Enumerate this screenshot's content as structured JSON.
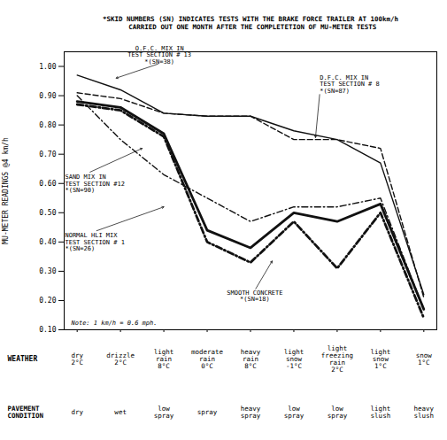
{
  "chart_data": {
    "type": "line",
    "title": "*SKID NUMBERS (SN) INDICATES TESTS WITH THE BRAKE FORCE TRAILER AT 100km/h\n CARRIED OUT ONE MONTH AFTER THE COMPLETETION OF MU-METER TESTS",
    "ylabel": "MU-METER READINGS @4 km/h",
    "xlabel": "WEATHER",
    "categories": [
      "dry\n2°C",
      "drizzle\n2°C",
      "light\nrain\n8°C",
      "moderate\nrain\n0°C",
      "heavy\nrain\n8°C",
      "light\nsnow\n-1°C",
      "light\nfreezing\nrain\n2°C",
      "light\nsnow\n1°C",
      "snow\n1°C"
    ],
    "secondary_xlabel": "PAVEMENT\nCONDITION",
    "secondary_categories": [
      "dry",
      "wet",
      "low\nspray",
      "spray",
      "heavy\nspray",
      "low\nspray",
      "low\nspray",
      "light\nslush",
      "heavy\nslush"
    ],
    "ylim": [
      0.1,
      1.05
    ],
    "yticks": [
      {
        "value": 0.1,
        "label": "0.10"
      },
      {
        "value": 0.2,
        "label": "0.20"
      },
      {
        "value": 0.3,
        "label": "0.30"
      },
      {
        "value": 0.4,
        "label": "0.40"
      },
      {
        "value": 0.5,
        "label": "0.50"
      },
      {
        "value": 0.6,
        "label": "0.60"
      },
      {
        "value": 0.7,
        "label": "0.70"
      },
      {
        "value": 0.8,
        "label": "0.80"
      },
      {
        "value": 0.9,
        "label": "0.90"
      },
      {
        "value": 1.0,
        "label": "1.00"
      }
    ],
    "grid": false,
    "series": [
      {
        "name": "O.F.C. MIX IN\nTEST SECTION # 13\n*(SN=38)",
        "color": "#111111",
        "line_style": "solid",
        "values": [
          0.97,
          0.92,
          0.84,
          0.83,
          0.83,
          0.78,
          0.75,
          0.67,
          0.22
        ],
        "annotation": {
          "x": 0.9,
          "y": 0.96,
          "text_x": 1.9,
          "text_y": 1.01
        }
      },
      {
        "name": "D.F.C. MIX IN\nTEST SECTION # 8\n*(SN=87)",
        "color": "#111111",
        "line_style": "dashed",
        "values": [
          0.91,
          0.89,
          0.84,
          0.83,
          0.83,
          0.75,
          0.75,
          0.72,
          0.21
        ],
        "annotation": {
          "x": 5.5,
          "y": 0.757,
          "text_x": 5.6,
          "text_y": 0.91
        }
      },
      {
        "name": "SAND MIX IN\nTEST SECTION #12\n*(SN=90)",
        "color": "#111111",
        "line_style": "dashdot",
        "values": [
          0.9,
          0.75,
          0.63,
          0.55,
          0.47,
          0.52,
          0.52,
          0.55,
          0.17
        ],
        "annotation": {
          "x": 1.5,
          "y": 0.72,
          "text_x": -0.28,
          "text_y": 0.6
        }
      },
      {
        "name": "NORMAL HLI MIX\nTEST SECTION # 1\n*(SN=26)",
        "color": "#111111",
        "line_style": "heavy-solid",
        "values": [
          0.88,
          0.86,
          0.77,
          0.44,
          0.38,
          0.5,
          0.47,
          0.53,
          0.17
        ],
        "annotation": {
          "x": 2.0,
          "y": 0.52,
          "text_x": -0.28,
          "text_y": 0.4
        }
      },
      {
        "name": "SMOOTH CONCRETE\n*(SN=18)",
        "color": "#111111",
        "line_style": "heavy-dashdot",
        "values": [
          0.87,
          0.85,
          0.76,
          0.4,
          0.33,
          0.47,
          0.31,
          0.5,
          0.14
        ],
        "annotation": {
          "x": 4.5,
          "y": 0.335,
          "text_x": 4.1,
          "text_y": 0.235
        }
      }
    ],
    "note": "Note: 1 km/h = 0.6 mph."
  }
}
